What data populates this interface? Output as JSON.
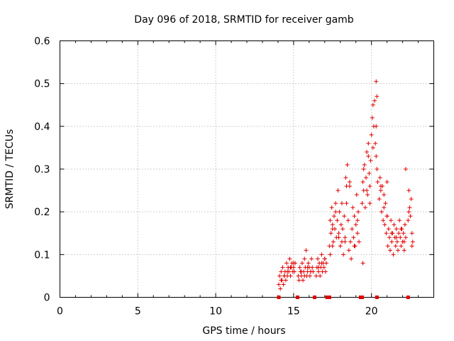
{
  "chart_data": {
    "type": "scatter",
    "title": "Day 096 of 2018, SRMTID for receiver gamb",
    "xlabel": "GPS time / hours",
    "ylabel": "SRMTID / TECUs",
    "xlim": [
      0,
      24
    ],
    "ylim": [
      0,
      0.6
    ],
    "x_ticks": [
      0,
      5,
      10,
      15,
      20
    ],
    "y_ticks": [
      0,
      0.1,
      0.2,
      0.3,
      0.4,
      0.5,
      0.6
    ],
    "x_tick_labels": [
      "0",
      "5",
      "10",
      "15",
      "20"
    ],
    "y_tick_labels": [
      "0",
      "0.1",
      "0.2",
      "0.3",
      "0.4",
      "0.5",
      "0.6"
    ],
    "grid": true,
    "marker_color": "#e00000",
    "series": [
      {
        "name": "SRMTID",
        "marker": "plus",
        "x": [
          14.05,
          14.1,
          14.15,
          14.2,
          14.25,
          14.3,
          14.35,
          14.4,
          14.45,
          14.5,
          14.55,
          14.6,
          14.65,
          14.7,
          14.75,
          14.8,
          14.85,
          14.9,
          14.95,
          15.0,
          15.05,
          15.1,
          15.3,
          15.35,
          15.4,
          15.45,
          15.5,
          15.55,
          15.6,
          15.65,
          15.7,
          15.75,
          15.8,
          15.85,
          15.9,
          15.95,
          16.0,
          16.05,
          16.1,
          16.15,
          16.2,
          16.25,
          16.45,
          16.5,
          16.55,
          16.6,
          16.65,
          16.7,
          16.75,
          16.8,
          16.85,
          16.9,
          16.95,
          17.0,
          17.05,
          17.1,
          17.3,
          17.35,
          17.4,
          17.45,
          17.5,
          17.55,
          17.6,
          17.65,
          17.7,
          17.75,
          17.8,
          17.85,
          17.9,
          17.95,
          18.0,
          18.05,
          18.1,
          18.15,
          18.2,
          18.25,
          18.3,
          18.35,
          18.4,
          18.45,
          18.5,
          18.55,
          18.6,
          18.65,
          18.7,
          18.75,
          18.8,
          18.85,
          18.9,
          18.95,
          19.0,
          19.05,
          19.1,
          19.15,
          19.2,
          19.4,
          19.45,
          19.5,
          19.55,
          19.6,
          19.65,
          19.7,
          19.75,
          19.8,
          19.85,
          19.9,
          19.95,
          20.0,
          20.05,
          20.1,
          20.15,
          20.2,
          20.25,
          20.3,
          20.35,
          20.4,
          20.5,
          20.55,
          20.6,
          20.65,
          20.7,
          20.75,
          20.8,
          20.85,
          20.9,
          20.95,
          21.0,
          21.05,
          21.1,
          21.15,
          21.2,
          21.25,
          21.3,
          21.35,
          21.4,
          21.45,
          21.5,
          21.55,
          21.6,
          21.65,
          21.7,
          21.75,
          21.8,
          21.85,
          21.9,
          21.95,
          22.0,
          22.05,
          22.1,
          22.15,
          22.2,
          22.35,
          22.4,
          22.45,
          22.5,
          22.55,
          22.6,
          22.65,
          14.2,
          14.4,
          14.6,
          14.8,
          15.0,
          15.5,
          15.7,
          15.9,
          16.1,
          16.6,
          16.8,
          17.0,
          17.5,
          17.7,
          17.9,
          18.1,
          18.3,
          18.6,
          18.9,
          19.1,
          19.5,
          19.7,
          19.9,
          20.1,
          20.3,
          20.6,
          20.8,
          21.0,
          21.3,
          21.6,
          21.9,
          22.1,
          22.4,
          22.6,
          19.45,
          20.3,
          20.35,
          18.4,
          17.5,
          22.2,
          21.0,
          19.8,
          17.35
        ],
        "y": [
          0.03,
          0.05,
          0.02,
          0.06,
          0.04,
          0.07,
          0.03,
          0.05,
          0.06,
          0.04,
          0.08,
          0.05,
          0.07,
          0.06,
          0.09,
          0.05,
          0.07,
          0.08,
          0.06,
          0.07,
          0.06,
          0.08,
          0.05,
          0.04,
          0.07,
          0.06,
          0.05,
          0.08,
          0.04,
          0.06,
          0.09,
          0.07,
          0.11,
          0.05,
          0.06,
          0.08,
          0.07,
          0.05,
          0.06,
          0.09,
          0.07,
          0.06,
          0.05,
          0.07,
          0.09,
          0.06,
          0.08,
          0.05,
          0.07,
          0.1,
          0.06,
          0.08,
          0.07,
          0.09,
          0.06,
          0.08,
          0.12,
          0.18,
          0.15,
          0.21,
          0.17,
          0.13,
          0.19,
          0.16,
          0.22,
          0.14,
          0.18,
          0.25,
          0.15,
          0.2,
          0.12,
          0.17,
          0.13,
          0.16,
          0.1,
          0.19,
          0.14,
          0.28,
          0.22,
          0.31,
          0.18,
          0.11,
          0.26,
          0.13,
          0.09,
          0.16,
          0.21,
          0.14,
          0.19,
          0.12,
          0.17,
          0.24,
          0.15,
          0.2,
          0.13,
          0.22,
          0.27,
          0.25,
          0.31,
          0.21,
          0.28,
          0.34,
          0.24,
          0.36,
          0.29,
          0.26,
          0.32,
          0.38,
          0.42,
          0.45,
          0.4,
          0.46,
          0.36,
          0.33,
          0.3,
          0.27,
          0.23,
          0.28,
          0.25,
          0.2,
          0.26,
          0.18,
          0.24,
          0.17,
          0.22,
          0.15,
          0.19,
          0.12,
          0.16,
          0.14,
          0.11,
          0.18,
          0.13,
          0.15,
          0.1,
          0.17,
          0.14,
          0.12,
          0.16,
          0.13,
          0.11,
          0.15,
          0.18,
          0.14,
          0.12,
          0.16,
          0.13,
          0.15,
          0.11,
          0.17,
          0.14,
          0.18,
          0.25,
          0.21,
          0.19,
          0.23,
          0.15,
          0.13,
          0.04,
          0.05,
          0.06,
          0.07,
          0.08,
          0.06,
          0.05,
          0.07,
          0.06,
          0.07,
          0.08,
          0.09,
          0.16,
          0.2,
          0.14,
          0.22,
          0.13,
          0.27,
          0.12,
          0.18,
          0.3,
          0.25,
          0.22,
          0.35,
          0.4,
          0.26,
          0.21,
          0.19,
          0.15,
          0.14,
          0.16,
          0.13,
          0.2,
          0.12,
          0.08,
          0.505,
          0.47,
          0.26,
          0.12,
          0.3,
          0.27,
          0.33,
          0.1
        ]
      }
    ],
    "coverage_markers_x": [
      14.05,
      15.25,
      16.35,
      17.15,
      17.3,
      19.3,
      19.4,
      20.35,
      22.35
    ]
  }
}
